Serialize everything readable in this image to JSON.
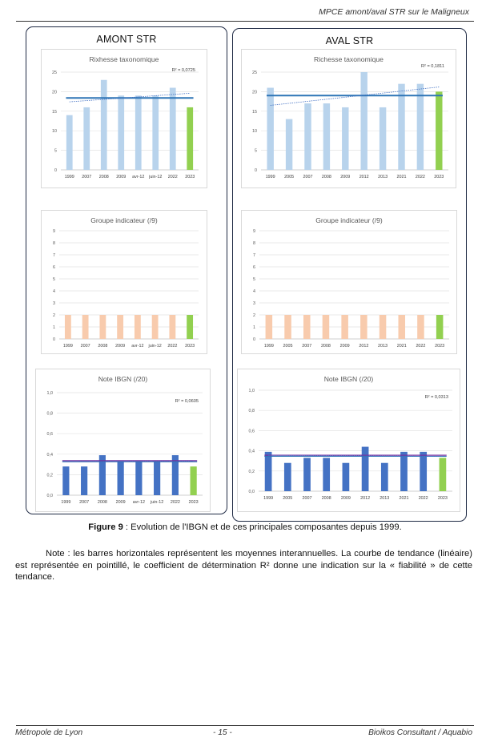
{
  "header": {
    "title": "MPCE amont/aval STR sur le Maligneux"
  },
  "colors": {
    "light_blue": "#b8d3ec",
    "dark_blue": "#4472c4",
    "orange": "#f8cbad",
    "green": "#92d050",
    "mean_line_blue": "#2e75b6",
    "mean_line_purple": "#7030a0",
    "trend_blue": "#4472c4"
  },
  "panels": [
    {
      "title": "AMONT STR"
    },
    {
      "title": "AVAL STR"
    }
  ],
  "chart_data": [
    {
      "type": "bar",
      "title": "Rixhesse taxonomique",
      "r2": "R² = 0,0725",
      "categories": [
        "1999",
        "2007",
        "2008",
        "2009",
        "avr-12",
        "juin-12",
        "2022",
        "2023"
      ],
      "values": [
        14,
        16,
        23,
        19,
        19,
        19,
        21,
        16
      ],
      "mean": 18.4,
      "trend": [
        17.4,
        19.6
      ],
      "ylim": [
        0,
        25
      ],
      "yticks": [
        "0",
        "5",
        "10",
        "15",
        "20",
        "25"
      ],
      "bar_color": "light_blue",
      "last_bar_color": "green",
      "grid": true
    },
    {
      "type": "bar",
      "title": "Groupe indicateur (/9)",
      "categories": [
        "1999",
        "2007",
        "2008",
        "2009",
        "avr-12",
        "juin-12",
        "2022",
        "2023"
      ],
      "values": [
        2,
        2,
        2,
        2,
        2,
        2,
        2,
        2
      ],
      "ylim": [
        0,
        9
      ],
      "yticks": [
        "0",
        "1",
        "2",
        "3",
        "4",
        "5",
        "6",
        "7",
        "8",
        "9"
      ],
      "bar_color": "orange",
      "last_bar_color": "green",
      "grid": true
    },
    {
      "type": "bar",
      "title": "Note IBGN (/20)",
      "r2": "R² = 0,0605",
      "categories": [
        "1999",
        "2007",
        "2008",
        "2009",
        "avr-12",
        "juin-12",
        "2022",
        "2023"
      ],
      "values": [
        0.28,
        0.28,
        0.39,
        0.33,
        0.33,
        0.33,
        0.39,
        0.28
      ],
      "mean": 0.33,
      "trend": [
        0.325,
        0.33
      ],
      "ylim": [
        0,
        1.0
      ],
      "yticks": [
        "0,0",
        "0,2",
        "0,4",
        "0,6",
        "0,8",
        "1,0"
      ],
      "bar_color": "dark_blue",
      "last_bar_color": "green",
      "grid": true
    },
    {
      "type": "bar",
      "title": "Richesse taxonomique",
      "r2": "R² = 0,1811",
      "categories": [
        "1999",
        "2005",
        "2007",
        "2008",
        "2009",
        "2012",
        "2013",
        "2021",
        "2022",
        "2023"
      ],
      "values": [
        21,
        13,
        17,
        17,
        16,
        25,
        16,
        22,
        22,
        20
      ],
      "mean": 19,
      "trend": [
        16.5,
        21.2
      ],
      "ylim": [
        0,
        25
      ],
      "yticks": [
        "0",
        "5",
        "10",
        "15",
        "20",
        "25"
      ],
      "bar_color": "light_blue",
      "last_bar_color": "green",
      "grid": true
    },
    {
      "type": "bar",
      "title": "Groupe indicateur (/9)",
      "categories": [
        "1999",
        "2005",
        "2007",
        "2008",
        "2009",
        "2012",
        "2013",
        "2021",
        "2022",
        "2023"
      ],
      "values": [
        2,
        2,
        2,
        2,
        2,
        2,
        2,
        2,
        2,
        2
      ],
      "ylim": [
        0,
        9
      ],
      "yticks": [
        "0",
        "1",
        "2",
        "3",
        "4",
        "5",
        "6",
        "7",
        "8",
        "9"
      ],
      "bar_color": "orange",
      "last_bar_color": "green",
      "grid": true
    },
    {
      "type": "bar",
      "title": "Note IBGN (/20)",
      "r2": "R² = 0,0313",
      "categories": [
        "1999",
        "2005",
        "2007",
        "2008",
        "2009",
        "2012",
        "2013",
        "2021",
        "2022",
        "2023"
      ],
      "values": [
        0.39,
        0.28,
        0.33,
        0.33,
        0.28,
        0.44,
        0.28,
        0.39,
        0.39,
        0.33
      ],
      "mean": 0.35,
      "trend": [
        0.355,
        0.345
      ],
      "ylim": [
        0,
        1.0
      ],
      "yticks": [
        "0,0",
        "0,2",
        "0,4",
        "0,6",
        "0,8",
        "1,0"
      ],
      "bar_color": "dark_blue",
      "last_bar_color": "green",
      "grid": true
    }
  ],
  "caption": {
    "label": "Figure 9",
    "text": " : Evolution de l'IBGN et de ces principales composantes depuis 1999."
  },
  "note": "Note : les barres horizontales représentent les moyennes interannuelles. La courbe de tendance (linéaire) est représentée en pointillé, le coefficient de détermination R² donne une indication sur la « fiabilité » de cette tendance.",
  "footer": {
    "left": "Métropole de Lyon",
    "center": "- 15 -",
    "right": "Bioikos Consultant / Aquabio"
  }
}
